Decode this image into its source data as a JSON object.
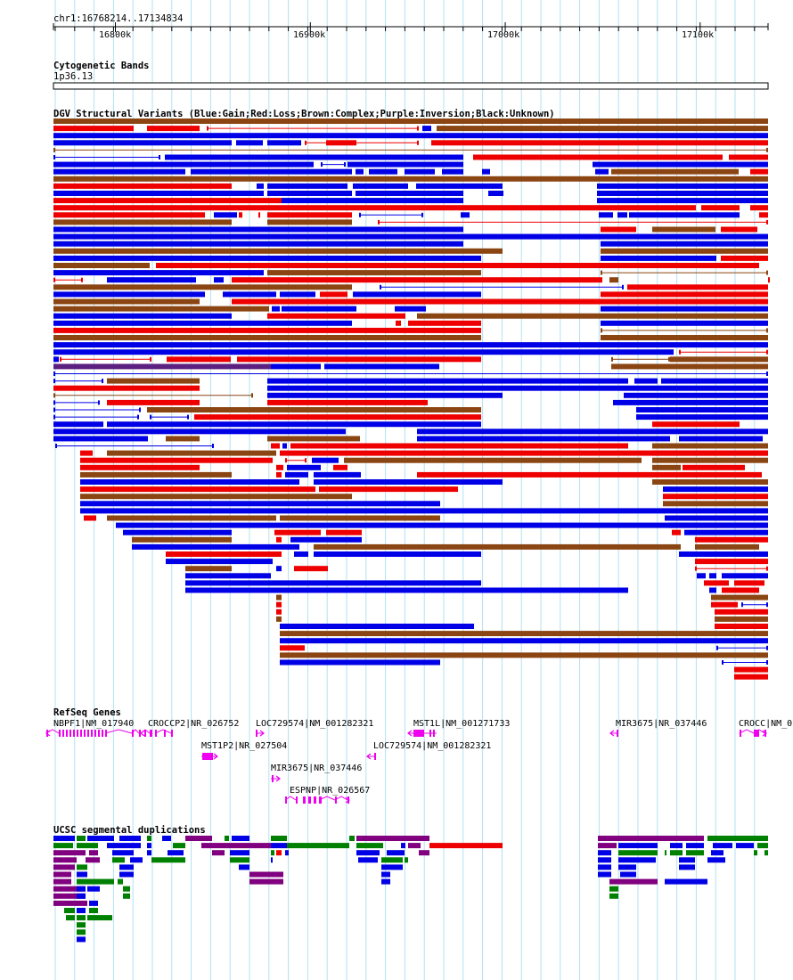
{
  "coords": "chr1:16768214..17134834",
  "ruler": {
    "start": 16768214,
    "end": 17134834,
    "ticks": [
      {
        "pos": 16800000,
        "label": "16800k"
      },
      {
        "pos": 16900000,
        "label": "16900k"
      },
      {
        "pos": 17000000,
        "label": "17000k"
      },
      {
        "pos": 17100000,
        "label": "17100k"
      }
    ]
  },
  "tracks": {
    "cytoband": {
      "title": "Cytogenetic Bands",
      "band": "1p36.13"
    },
    "dgv": {
      "title": "DGV Structural Variants (Blue:Gain;Red:Loss;Brown:Complex;Purple:Inversion;Black:Unknown)",
      "colors": {
        "gain": "#0000e6",
        "loss": "#ee0000",
        "complex": "#8b4513",
        "inversion": "#5c2080"
      }
    },
    "refseq": {
      "title": "RefSeq Genes",
      "color": "#ee00ee",
      "genes": [
        {
          "label": "NBPF1|NM_017940",
          "strand": "-"
        },
        {
          "label": "CROCCP2|NR_026752",
          "strand": "-"
        },
        {
          "label": "LOC729574|NM_001282321",
          "strand": "+"
        },
        {
          "label": "MST1L|NM_001271733",
          "strand": "-"
        },
        {
          "label": "MIR3675|NR_037446",
          "strand": "-"
        },
        {
          "label": "CROCC|NM_0",
          "strand": "+"
        },
        {
          "label": "MST1P2|NR_027504",
          "strand": "+"
        },
        {
          "label": "LOC729574|NM_001282321",
          "strand": "-"
        },
        {
          "label": "MIR3675|NR_037446",
          "strand": "+"
        },
        {
          "label": "ESPNP|NR_026567",
          "strand": "+"
        }
      ]
    },
    "segdup": {
      "title": "UCSC segmental duplications",
      "colors": {
        "blue": "#0000e6",
        "green": "#008000",
        "purple": "#800080",
        "red": "#ee0000"
      }
    }
  }
}
